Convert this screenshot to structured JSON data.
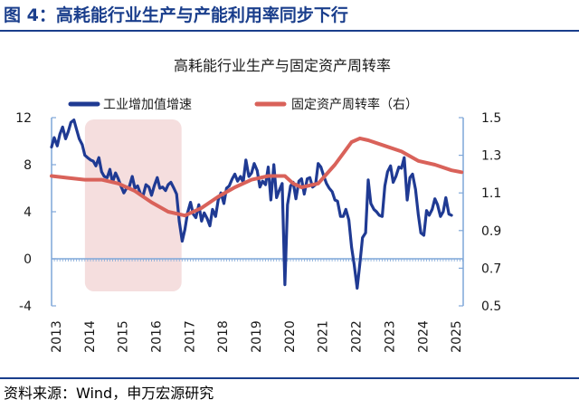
{
  "figure": {
    "title": "图 4：高耗能行业生产与产能利用率同步下行",
    "source": "资料来源：Wind，申万宏源研究"
  },
  "colors": {
    "frame": "#1a3e8c",
    "series_1": "#1f3a93",
    "series_2": "#d9625a",
    "highlight": "#f5dede",
    "axis": "#7fa7d9",
    "zero_line": "#7fa7d9"
  },
  "chart_data": {
    "type": "line",
    "title": "高耗能行业生产与固定资产周转率",
    "legend_position": "top",
    "grid": false,
    "x_ticks": [
      "2013",
      "2014",
      "2015",
      "2016",
      "2017",
      "2018",
      "2019",
      "2020",
      "2021",
      "2022",
      "2023",
      "2024",
      "2025"
    ],
    "x_range": [
      2013.0,
      2025.35
    ],
    "y_left": {
      "ticks": [
        "12",
        "8",
        "4",
        "0",
        "-4"
      ],
      "range": [
        -4,
        12
      ]
    },
    "y_right": {
      "ticks": [
        "1.5",
        "1.3",
        "1.1",
        "0.9",
        "0.7",
        "0.5"
      ],
      "range": [
        0.5,
        1.5
      ]
    },
    "highlight_period": {
      "start": 2014.0,
      "end": 2016.9
    },
    "series": [
      {
        "name": "工业增加值增速",
        "axis": "left",
        "points": [
          [
            2013.0,
            9.5
          ],
          [
            2013.08,
            10.3
          ],
          [
            2013.17,
            9.6
          ],
          [
            2013.25,
            10.6
          ],
          [
            2013.33,
            11.2
          ],
          [
            2013.42,
            10.2
          ],
          [
            2013.5,
            10.8
          ],
          [
            2013.58,
            11.6
          ],
          [
            2013.67,
            11.8
          ],
          [
            2013.75,
            11.0
          ],
          [
            2013.83,
            10.2
          ],
          [
            2013.92,
            9.7
          ],
          [
            2014.0,
            8.8
          ],
          [
            2014.08,
            8.6
          ],
          [
            2014.17,
            8.4
          ],
          [
            2014.25,
            8.3
          ],
          [
            2014.33,
            7.9
          ],
          [
            2014.42,
            8.6
          ],
          [
            2014.5,
            7.4
          ],
          [
            2014.58,
            7.0
          ],
          [
            2014.67,
            6.9
          ],
          [
            2014.75,
            7.6
          ],
          [
            2014.83,
            6.5
          ],
          [
            2014.92,
            7.3
          ],
          [
            2015.0,
            6.8
          ],
          [
            2015.08,
            6.2
          ],
          [
            2015.17,
            5.6
          ],
          [
            2015.25,
            6.0
          ],
          [
            2015.33,
            6.1
          ],
          [
            2015.42,
            7.0
          ],
          [
            2015.5,
            6.0
          ],
          [
            2015.58,
            6.2
          ],
          [
            2015.67,
            5.5
          ],
          [
            2015.75,
            5.4
          ],
          [
            2015.83,
            6.3
          ],
          [
            2015.92,
            6.1
          ],
          [
            2016.0,
            5.4
          ],
          [
            2016.08,
            6.2
          ],
          [
            2016.17,
            6.9
          ],
          [
            2016.25,
            6.0
          ],
          [
            2016.33,
            6.1
          ],
          [
            2016.42,
            5.8
          ],
          [
            2016.5,
            6.3
          ],
          [
            2016.58,
            6.5
          ],
          [
            2016.67,
            6.0
          ],
          [
            2016.75,
            5.5
          ],
          [
            2016.83,
            3.2
          ],
          [
            2016.92,
            1.5
          ],
          [
            2017.0,
            2.5
          ],
          [
            2017.08,
            3.9
          ],
          [
            2017.17,
            4.8
          ],
          [
            2017.25,
            3.8
          ],
          [
            2017.33,
            3.5
          ],
          [
            2017.42,
            4.6
          ],
          [
            2017.5,
            3.2
          ],
          [
            2017.58,
            3.9
          ],
          [
            2017.67,
            3.4
          ],
          [
            2017.75,
            2.8
          ],
          [
            2017.83,
            4.2
          ],
          [
            2017.92,
            3.6
          ],
          [
            2018.0,
            5.0
          ],
          [
            2018.08,
            5.6
          ],
          [
            2018.17,
            4.7
          ],
          [
            2018.25,
            6.0
          ],
          [
            2018.33,
            6.2
          ],
          [
            2018.42,
            6.8
          ],
          [
            2018.5,
            7.2
          ],
          [
            2018.58,
            6.6
          ],
          [
            2018.67,
            7.0
          ],
          [
            2018.75,
            6.5
          ],
          [
            2018.83,
            8.4
          ],
          [
            2018.92,
            7.0
          ],
          [
            2019.0,
            7.3
          ],
          [
            2019.08,
            8.1
          ],
          [
            2019.17,
            7.5
          ],
          [
            2019.25,
            6.1
          ],
          [
            2019.33,
            6.6
          ],
          [
            2019.42,
            6.3
          ],
          [
            2019.5,
            7.8
          ],
          [
            2019.58,
            5.0
          ],
          [
            2019.67,
            8.0
          ],
          [
            2019.75,
            5.2
          ],
          [
            2019.83,
            5.8
          ],
          [
            2019.92,
            6.4
          ],
          [
            2020.0,
            -2.2
          ],
          [
            2020.08,
            4.6
          ],
          [
            2020.17,
            6.2
          ],
          [
            2020.25,
            6.5
          ],
          [
            2020.33,
            5.1
          ],
          [
            2020.42,
            6.6
          ],
          [
            2020.5,
            6.8
          ],
          [
            2020.58,
            5.5
          ],
          [
            2020.67,
            6.8
          ],
          [
            2020.75,
            6.9
          ],
          [
            2020.83,
            6.1
          ],
          [
            2020.92,
            6.3
          ],
          [
            2021.0,
            8.1
          ],
          [
            2021.08,
            7.8
          ],
          [
            2021.17,
            7.0
          ],
          [
            2021.25,
            6.4
          ],
          [
            2021.33,
            6.0
          ],
          [
            2021.42,
            5.7
          ],
          [
            2021.5,
            5.0
          ],
          [
            2021.58,
            4.9
          ],
          [
            2021.67,
            3.6
          ],
          [
            2021.75,
            3.6
          ],
          [
            2021.83,
            4.2
          ],
          [
            2021.92,
            3.3
          ],
          [
            2022.0,
            1.0
          ],
          [
            2022.08,
            -0.5
          ],
          [
            2022.17,
            -2.5
          ],
          [
            2022.25,
            -0.4
          ],
          [
            2022.33,
            1.8
          ],
          [
            2022.42,
            2.2
          ],
          [
            2022.5,
            6.7
          ],
          [
            2022.58,
            4.7
          ],
          [
            2022.67,
            4.2
          ],
          [
            2022.75,
            4.0
          ],
          [
            2022.83,
            3.7
          ],
          [
            2022.92,
            3.6
          ],
          [
            2023.0,
            6.2
          ],
          [
            2023.08,
            7.4
          ],
          [
            2023.17,
            7.9
          ],
          [
            2023.25,
            6.5
          ],
          [
            2023.33,
            7.0
          ],
          [
            2023.42,
            7.8
          ],
          [
            2023.5,
            7.7
          ],
          [
            2023.58,
            8.6
          ],
          [
            2023.67,
            5.0
          ],
          [
            2023.75,
            6.9
          ],
          [
            2023.83,
            7.2
          ],
          [
            2023.92,
            5.9
          ],
          [
            2024.0,
            3.8
          ],
          [
            2024.08,
            2.2
          ],
          [
            2024.17,
            2.0
          ],
          [
            2024.25,
            4.1
          ],
          [
            2024.33,
            3.7
          ],
          [
            2024.42,
            4.2
          ],
          [
            2024.5,
            5.1
          ],
          [
            2024.58,
            4.6
          ],
          [
            2024.67,
            3.6
          ],
          [
            2024.75,
            4.0
          ],
          [
            2024.83,
            5.2
          ],
          [
            2024.92,
            3.8
          ],
          [
            2025.0,
            3.7
          ]
        ]
      },
      {
        "name": "固定资产周转率（右）",
        "axis": "right",
        "points": [
          [
            2013.0,
            1.19
          ],
          [
            2013.5,
            1.18
          ],
          [
            2014.0,
            1.17
          ],
          [
            2014.5,
            1.17
          ],
          [
            2015.0,
            1.15
          ],
          [
            2015.5,
            1.11
          ],
          [
            2016.0,
            1.05
          ],
          [
            2016.5,
            1.0
          ],
          [
            2017.0,
            0.98
          ],
          [
            2017.5,
            1.02
          ],
          [
            2018.0,
            1.08
          ],
          [
            2018.5,
            1.13
          ],
          [
            2019.0,
            1.17
          ],
          [
            2019.5,
            1.19
          ],
          [
            2020.0,
            1.19
          ],
          [
            2020.25,
            1.15
          ],
          [
            2020.5,
            1.13
          ],
          [
            2021.0,
            1.15
          ],
          [
            2021.5,
            1.25
          ],
          [
            2022.0,
            1.37
          ],
          [
            2022.25,
            1.39
          ],
          [
            2022.5,
            1.38
          ],
          [
            2023.0,
            1.35
          ],
          [
            2023.5,
            1.32
          ],
          [
            2024.0,
            1.27
          ],
          [
            2024.5,
            1.25
          ],
          [
            2025.0,
            1.22
          ],
          [
            2025.3,
            1.21
          ]
        ]
      }
    ]
  }
}
